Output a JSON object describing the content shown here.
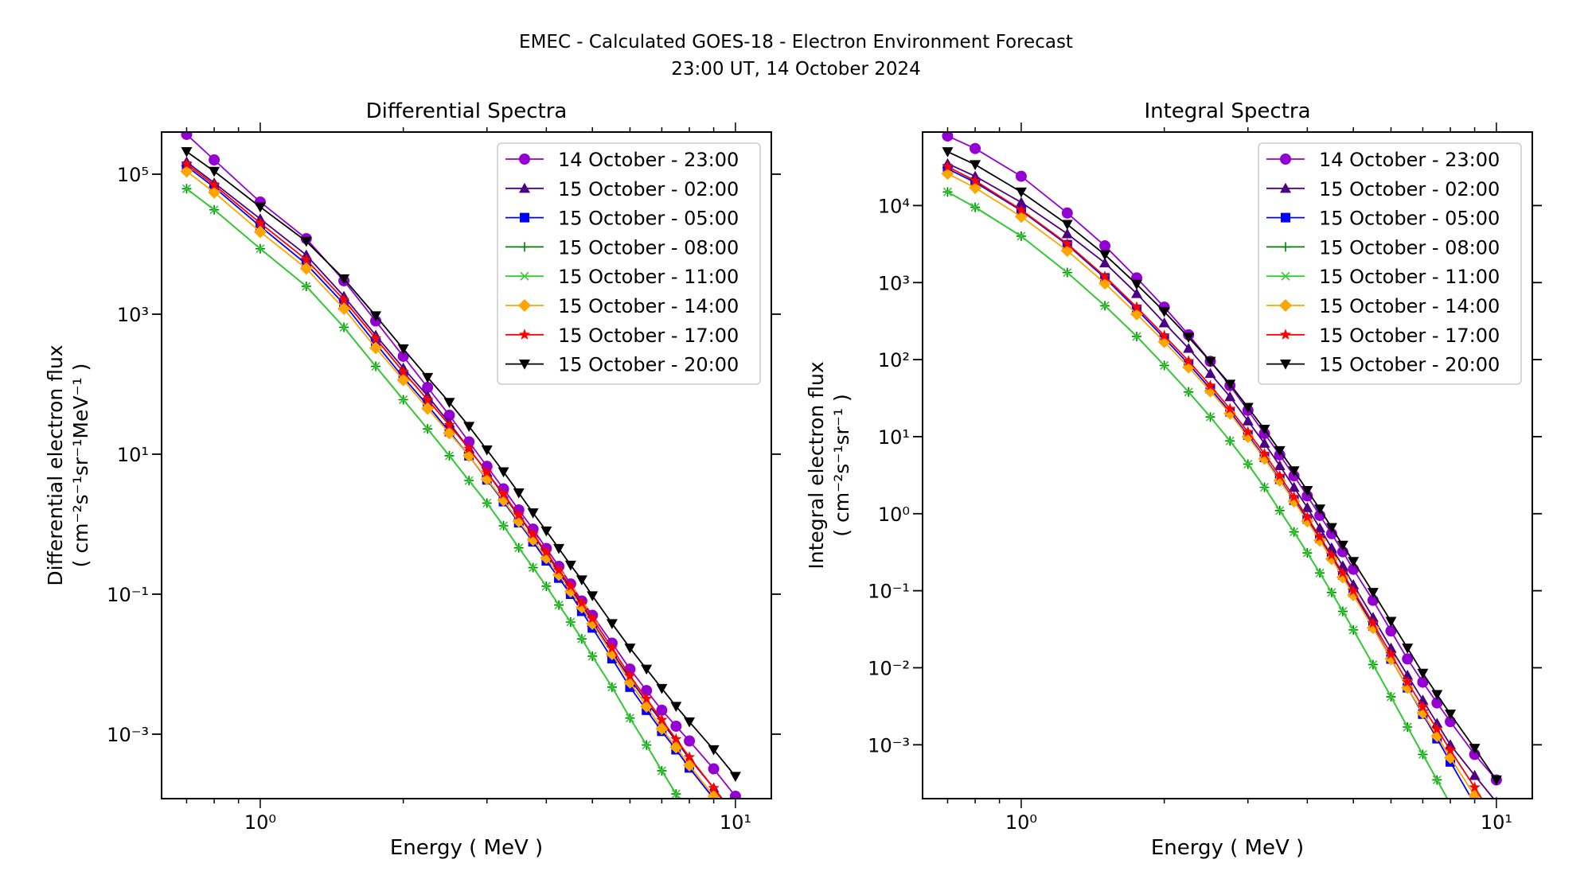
{
  "figure": {
    "title_line1": "EMEC - Calculated GOES-18 - Electron Environment Forecast",
    "title_line2": "23:00 UT, 14 October 2024"
  },
  "chart_data": [
    {
      "type": "line",
      "title": "Differential Spectra",
      "xlabel": "Energy ( MeV )",
      "ylabel_line1": "Differential electron flux",
      "ylabel_line2": "( cm⁻²s⁻¹sr⁻¹MeV⁻¹ )",
      "xscale": "log",
      "yscale": "log",
      "xlim": [
        0.62,
        11.9
      ],
      "ylim": [
        0.00012,
        400000
      ],
      "xticks": [
        {
          "value": 1,
          "label": "10⁰"
        },
        {
          "value": 10,
          "label": "10¹"
        }
      ],
      "yticks": [
        {
          "value": 0.001,
          "label": "10⁻³"
        },
        {
          "value": 0.1,
          "label": "10⁻¹"
        },
        {
          "value": 10,
          "label": "10¹"
        },
        {
          "value": 1000,
          "label": "10³"
        },
        {
          "value": 100000,
          "label": "10⁵"
        }
      ],
      "grid": false,
      "legend_position": "upper-right",
      "x": [
        0.7,
        0.8,
        1.0,
        1.25,
        1.5,
        1.75,
        2.0,
        2.25,
        2.5,
        2.75,
        3.0,
        3.25,
        3.5,
        3.75,
        4.0,
        4.25,
        4.5,
        4.75,
        5.0,
        5.5,
        6.0,
        6.5,
        7.0,
        7.5,
        8.0,
        9.0,
        10.0
      ],
      "series": [
        {
          "name": "14 October - 23:00",
          "color": "#9400d3",
          "marker": "circle",
          "anchors": [
            370000,
            160000,
            40000,
            12000,
            3000,
            800,
            250,
            90,
            36,
            15,
            6.7,
            3.2,
            1.6,
            0.85,
            0.45,
            0.25,
            0.14,
            0.08,
            0.05,
            0.02,
            0.0085,
            0.0042,
            0.0022,
            0.0013,
            0.0008,
            0.00032,
            0.00013
          ]
        },
        {
          "name": "15 October - 02:00",
          "color": "#4b0082",
          "marker": "triangle-up",
          "anchors": [
            150000,
            75000,
            23000,
            7000,
            1800,
            500,
            170,
            68,
            28,
            12,
            5.5,
            2.6,
            1.3,
            0.7,
            0.38,
            0.21,
            0.12,
            0.07,
            0.04,
            0.015,
            0.0062,
            0.0029,
            0.0015,
            0.0008,
            0.00045,
            0.00017,
            7e-05
          ]
        },
        {
          "name": "15 October - 05:00",
          "color": "#0000ff",
          "marker": "square",
          "anchors": [
            130000,
            65000,
            18000,
            5200,
            1400,
            380,
            125,
            50,
            21,
            9.5,
            4.3,
            2.1,
            1.05,
            0.56,
            0.3,
            0.17,
            0.1,
            0.057,
            0.033,
            0.012,
            0.0047,
            0.0022,
            0.0011,
            0.0006,
            0.00033,
            0.00012,
            5e-05
          ]
        },
        {
          "name": "15 October - 08:00",
          "color": "#008000",
          "marker": "plus",
          "anchors": [
            62000,
            31000,
            8600,
            2500,
            650,
            180,
            60,
            23,
            9.5,
            4.2,
            2.0,
            0.95,
            0.46,
            0.24,
            0.13,
            0.07,
            0.04,
            0.023,
            0.013,
            0.0047,
            0.0017,
            0.0007,
            0.0003,
            0.00014,
            7e-05,
            2.5e-05,
            1e-05
          ]
        },
        {
          "name": "15 October - 11:00",
          "color": "#32cd32",
          "marker": "x",
          "anchors": [
            62000,
            31000,
            8600,
            2500,
            650,
            180,
            60,
            23,
            9.5,
            4.2,
            2.0,
            0.95,
            0.46,
            0.24,
            0.13,
            0.07,
            0.04,
            0.023,
            0.013,
            0.0047,
            0.0017,
            0.0007,
            0.0003,
            0.00014,
            7e-05,
            2.5e-05,
            1e-05
          ]
        },
        {
          "name": "15 October - 14:00",
          "color": "#ffa500",
          "marker": "diamond",
          "anchors": [
            110000,
            55000,
            15000,
            4500,
            1200,
            330,
            115,
            45,
            20,
            9.5,
            4.4,
            2.2,
            1.1,
            0.6,
            0.33,
            0.19,
            0.11,
            0.065,
            0.038,
            0.014,
            0.0055,
            0.0025,
            0.0012,
            0.00065,
            0.00036,
            0.00013,
            5e-05
          ]
        },
        {
          "name": "15 October - 17:00",
          "color": "#ff0000",
          "marker": "star",
          "anchors": [
            140000,
            70000,
            20000,
            6000,
            1600,
            450,
            150,
            60,
            26,
            12,
            5.5,
            2.7,
            1.35,
            0.72,
            0.4,
            0.22,
            0.13,
            0.075,
            0.045,
            0.017,
            0.0068,
            0.0032,
            0.0016,
            0.00085,
            0.00047,
            0.00017,
            6.5e-05
          ]
        },
        {
          "name": "15 October - 20:00",
          "color": "#000000",
          "marker": "triangle-down",
          "anchors": [
            210000,
            110000,
            34000,
            11000,
            3200,
            950,
            320,
            125,
            55,
            25,
            11.5,
            5.6,
            2.8,
            1.45,
            0.8,
            0.45,
            0.26,
            0.16,
            0.095,
            0.038,
            0.017,
            0.0085,
            0.0045,
            0.0025,
            0.0015,
            0.0006,
            0.00025
          ]
        }
      ]
    },
    {
      "type": "line",
      "title": "Integral Spectra",
      "xlabel": "Energy ( MeV )",
      "ylabel_line1": "Integral electron flux",
      "ylabel_line2": "( cm⁻²s⁻¹sr⁻¹ )",
      "xscale": "log",
      "yscale": "log",
      "xlim": [
        0.62,
        11.9
      ],
      "ylim": [
        0.0002,
        90000
      ],
      "xticks": [
        {
          "value": 1,
          "label": "10⁰"
        },
        {
          "value": 10,
          "label": "10¹"
        }
      ],
      "yticks": [
        {
          "value": 0.001,
          "label": "10⁻³"
        },
        {
          "value": 0.01,
          "label": "10⁻²"
        },
        {
          "value": 0.1,
          "label": "10⁻¹"
        },
        {
          "value": 1,
          "label": "10⁰"
        },
        {
          "value": 10,
          "label": "10¹"
        },
        {
          "value": 100,
          "label": "10²"
        },
        {
          "value": 1000,
          "label": "10³"
        },
        {
          "value": 10000,
          "label": "10⁴"
        }
      ],
      "grid": false,
      "legend_position": "upper-right",
      "x": [
        0.7,
        0.8,
        1.0,
        1.25,
        1.5,
        1.75,
        2.0,
        2.25,
        2.5,
        2.75,
        3.0,
        3.25,
        3.5,
        3.75,
        4.0,
        4.25,
        4.5,
        4.75,
        5.0,
        5.5,
        6.0,
        6.5,
        7.0,
        7.5,
        8.0,
        9.0,
        10.0
      ],
      "series": [
        {
          "name": "14 October - 23:00",
          "color": "#9400d3",
          "marker": "circle",
          "anchors": [
            80000,
            55000,
            24000,
            8000,
            3000,
            1150,
            480,
            210,
            95,
            46,
            22,
            11,
            5.8,
            3.1,
            1.7,
            0.95,
            0.55,
            0.32,
            0.19,
            0.075,
            0.03,
            0.013,
            0.0065,
            0.0035,
            0.002,
            0.00075,
            0.00035
          ]
        },
        {
          "name": "15 October - 02:00",
          "color": "#4b0082",
          "marker": "triangle-up",
          "anchors": [
            35000,
            24000,
            11000,
            4300,
            1800,
            720,
            300,
            140,
            66,
            33,
            16,
            8.2,
            4.2,
            2.2,
            1.2,
            0.65,
            0.36,
            0.21,
            0.12,
            0.045,
            0.018,
            0.008,
            0.0038,
            0.0019,
            0.001,
            0.0004,
            0.00018
          ]
        },
        {
          "name": "15 October - 05:00",
          "color": "#0000ff",
          "marker": "square",
          "anchors": [
            30000,
            20000,
            8600,
            3100,
            1150,
            450,
            190,
            88,
            42,
            21,
            10.5,
            5.4,
            2.8,
            1.5,
            0.85,
            0.48,
            0.28,
            0.16,
            0.095,
            0.035,
            0.013,
            0.0055,
            0.0025,
            0.0012,
            0.0006,
            0.00017,
            6e-05
          ]
        },
        {
          "name": "15 October - 08:00",
          "color": "#008000",
          "marker": "plus",
          "anchors": [
            15000,
            9500,
            4000,
            1350,
            500,
            200,
            84,
            38,
            18,
            8.8,
            4.4,
            2.2,
            1.1,
            0.58,
            0.31,
            0.17,
            0.095,
            0.054,
            0.031,
            0.011,
            0.0042,
            0.0017,
            0.00075,
            0.00035,
            0.00017,
            6e-05,
            2e-05
          ]
        },
        {
          "name": "15 October - 11:00",
          "color": "#32cd32",
          "marker": "x",
          "anchors": [
            15000,
            9500,
            4000,
            1350,
            500,
            200,
            84,
            38,
            18,
            8.8,
            4.4,
            2.2,
            1.1,
            0.58,
            0.31,
            0.17,
            0.095,
            0.054,
            0.031,
            0.011,
            0.0042,
            0.0017,
            0.00075,
            0.00035,
            0.00017,
            6e-05,
            2e-05
          ]
        },
        {
          "name": "15 October - 14:00",
          "color": "#ffa500",
          "marker": "diamond",
          "anchors": [
            26000,
            17000,
            7200,
            2600,
            980,
            390,
            170,
            80,
            39,
            20,
            10,
            5.2,
            2.7,
            1.45,
            0.8,
            0.45,
            0.26,
            0.15,
            0.088,
            0.033,
            0.013,
            0.0055,
            0.0026,
            0.0013,
            0.00068,
            0.00022,
            8e-05
          ]
        },
        {
          "name": "15 October - 17:00",
          "color": "#ff0000",
          "marker": "star",
          "anchors": [
            32000,
            21000,
            8800,
            3200,
            1200,
            480,
            205,
            96,
            46,
            23,
            11.5,
            6.0,
            3.1,
            1.65,
            0.9,
            0.5,
            0.29,
            0.17,
            0.1,
            0.038,
            0.015,
            0.0065,
            0.0031,
            0.0016,
            0.00085,
            0.00028,
            0.0001
          ]
        },
        {
          "name": "15 October - 20:00",
          "color": "#000000",
          "marker": "triangle-down",
          "anchors": [
            50000,
            34000,
            15000,
            5700,
            2300,
            950,
            420,
            195,
            95,
            48,
            24,
            12.5,
            6.6,
            3.6,
            2.0,
            1.15,
            0.66,
            0.39,
            0.24,
            0.095,
            0.04,
            0.018,
            0.0085,
            0.0045,
            0.0025,
            0.0009,
            0.00035
          ]
        }
      ]
    }
  ]
}
